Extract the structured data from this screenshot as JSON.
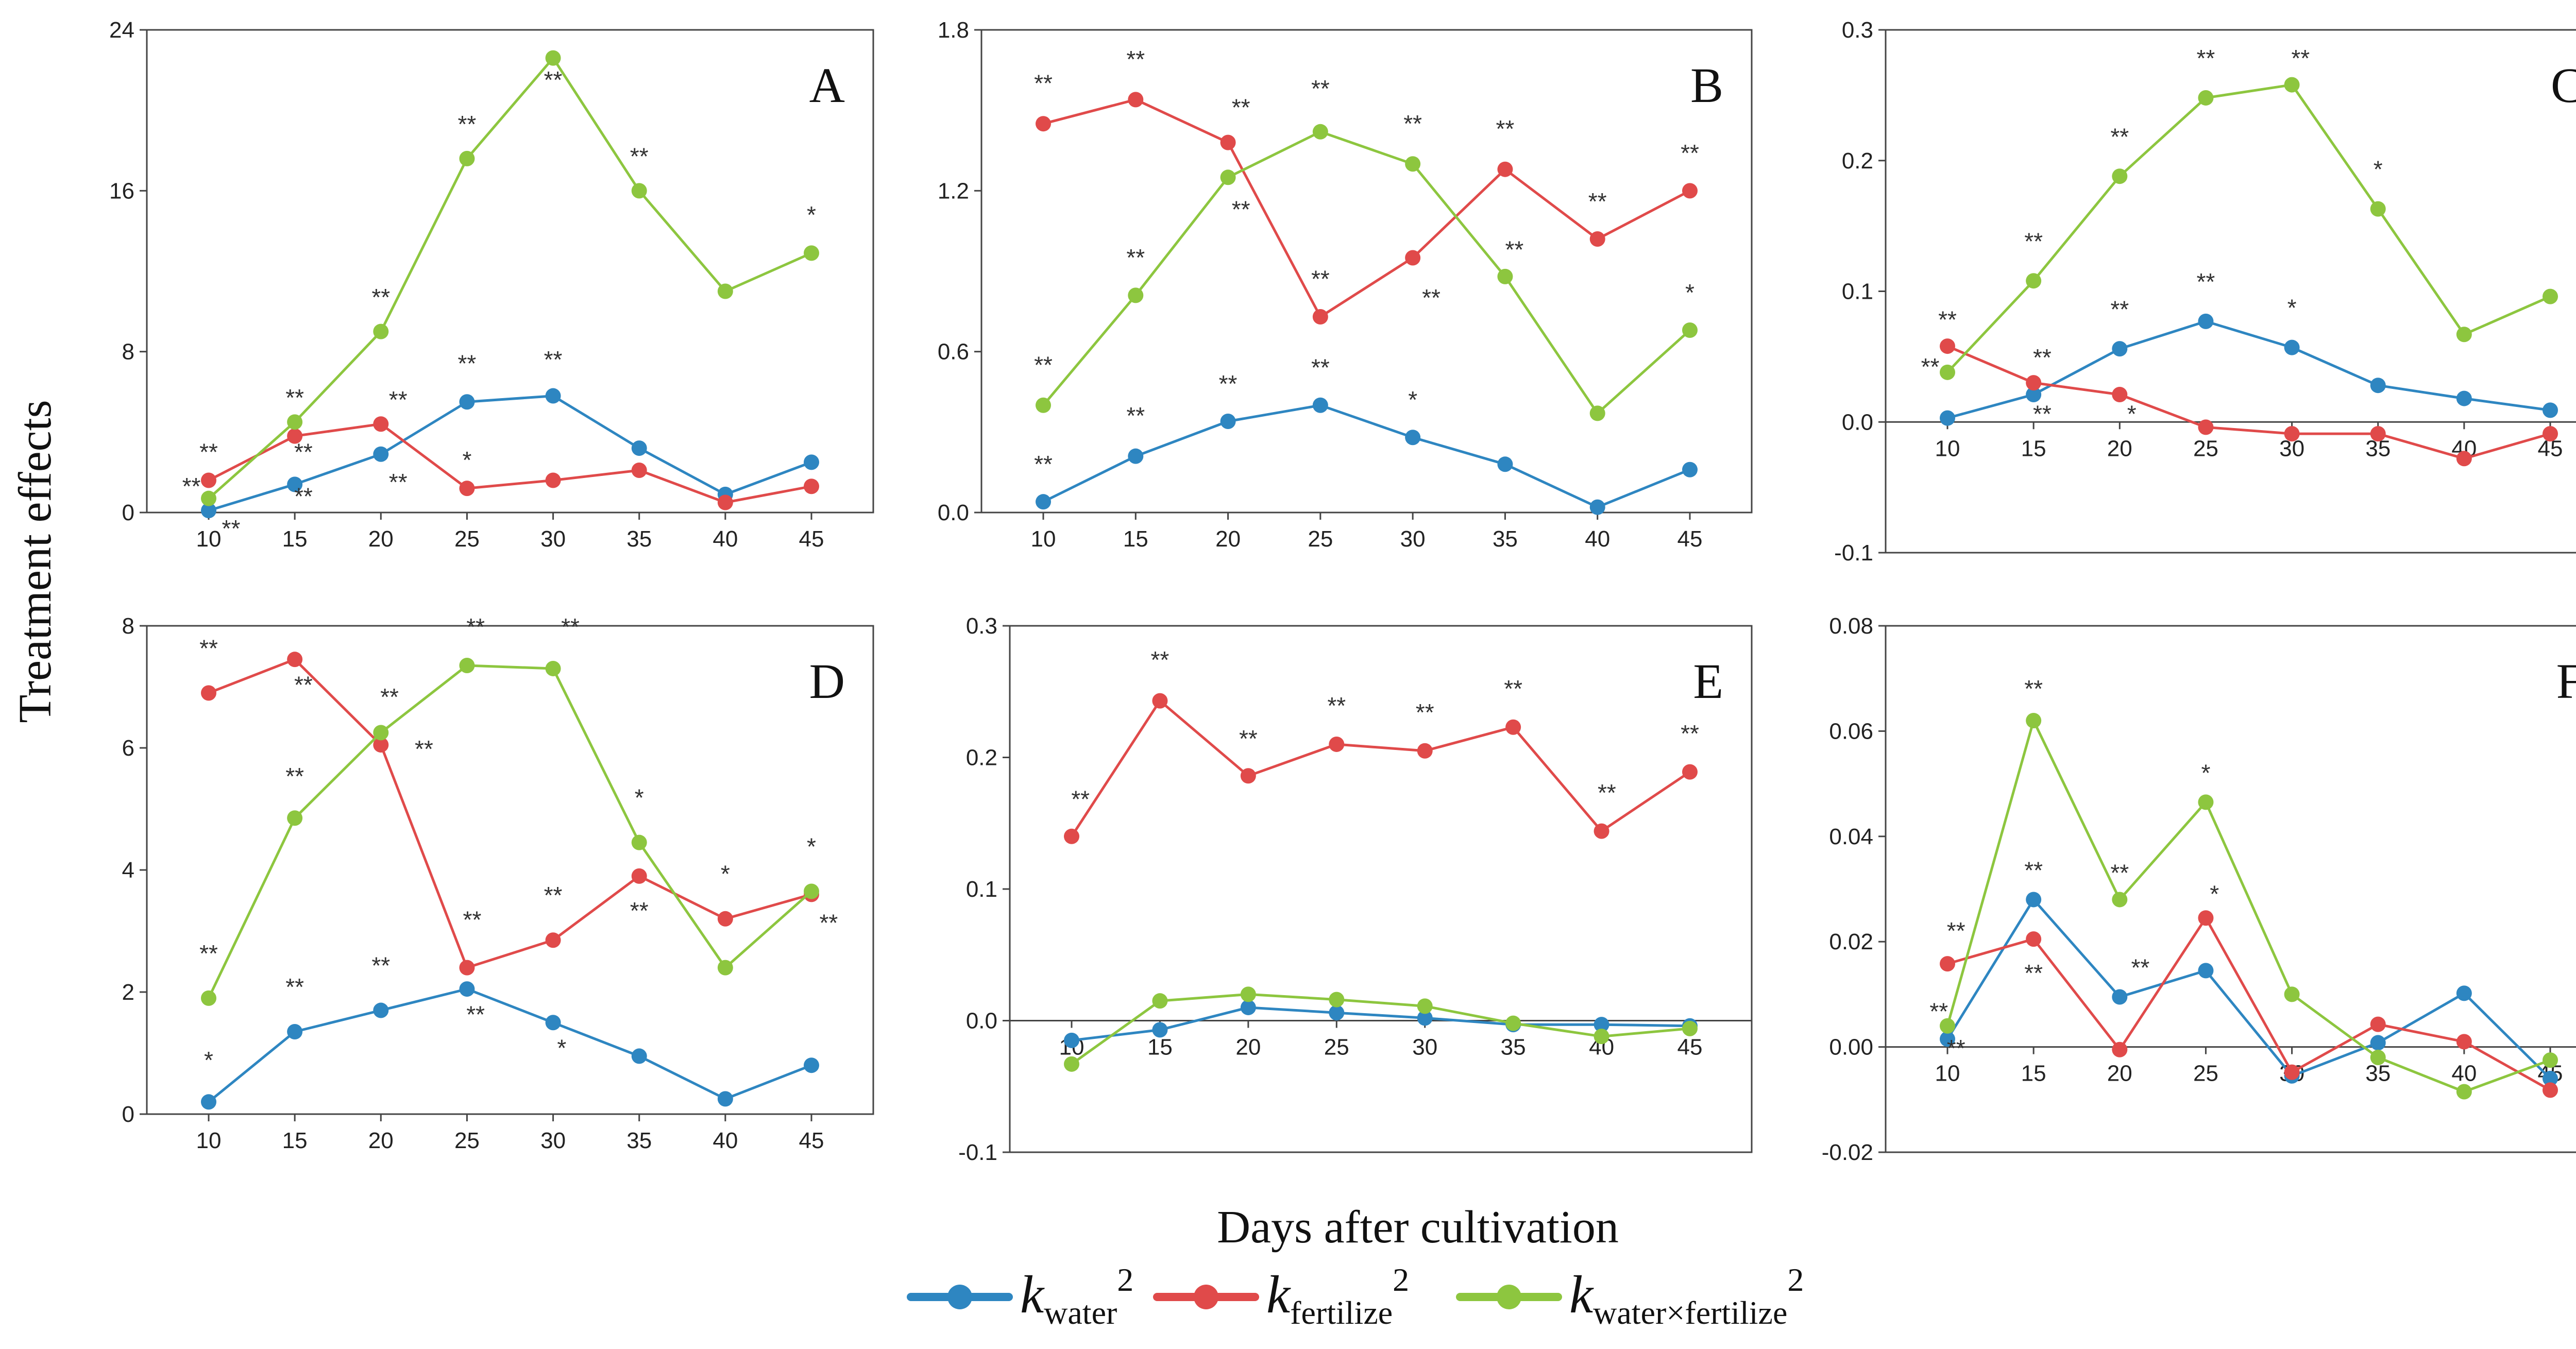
{
  "chart_data": {
    "type": "line",
    "ylabel": "Treatment effects",
    "xlabel": "Days after cultivation",
    "x": [
      10,
      15,
      20,
      25,
      30,
      35,
      40,
      45
    ],
    "series_names": [
      "k_water^2",
      "k_fertilize^2",
      "k_water×fertilize^2"
    ],
    "colors": {
      "k_water^2": "#2E86C1",
      "k_fertilize^2": "#E04A4A",
      "k_water×fertilize^2": "#8DC63F"
    },
    "legend": {
      "placement": "bottom-center",
      "items": [
        {
          "k": "k",
          "sub": "water",
          "sup": "2",
          "color": "#2E86C1"
        },
        {
          "k": "k",
          "sub": "fertilize",
          "sup": "2",
          "color": "#E04A4A"
        },
        {
          "k": "k",
          "sub": "water×fertilize",
          "sup": "2",
          "color": "#8DC63F"
        }
      ]
    },
    "panels": [
      {
        "label": "A",
        "ylim": [
          0,
          24
        ],
        "yticks": [
          "0",
          "8",
          "16",
          "24"
        ],
        "xaxis_at": 0,
        "series": [
          {
            "name": "k_water^2",
            "values": [
              0.1,
              1.4,
              2.9,
              5.5,
              5.8,
              3.2,
              0.9,
              2.5
            ]
          },
          {
            "name": "k_fertilize^2",
            "values": [
              1.6,
              3.8,
              4.4,
              1.2,
              1.6,
              2.1,
              0.5,
              1.3
            ]
          },
          {
            "name": "k_water×fertilize^2",
            "values": [
              0.7,
              4.5,
              9.0,
              17.6,
              22.6,
              16.0,
              11.0,
              12.9
            ]
          }
        ],
        "annotations": [
          {
            "x": 10,
            "y": 2.6,
            "text": "**"
          },
          {
            "x": 9.0,
            "y": 0.9,
            "text": "**"
          },
          {
            "x": 11.3,
            "y": -1.2,
            "text": "**"
          },
          {
            "x": 15,
            "y": 5.3,
            "text": "**"
          },
          {
            "x": 15.5,
            "y": 2.6,
            "text": "**"
          },
          {
            "x": 15.5,
            "y": 0.4,
            "text": "**"
          },
          {
            "x": 20,
            "y": 10.3,
            "text": "**"
          },
          {
            "x": 21,
            "y": 5.2,
            "text": "**"
          },
          {
            "x": 21,
            "y": 1.1,
            "text": "**"
          },
          {
            "x": 25,
            "y": 18.9,
            "text": "**"
          },
          {
            "x": 25,
            "y": 7.0,
            "text": "**"
          },
          {
            "x": 25,
            "y": 2.2,
            "text": "*"
          },
          {
            "x": 30,
            "y": 21.1,
            "text": "**"
          },
          {
            "x": 30,
            "y": 7.2,
            "text": "**"
          },
          {
            "x": 35,
            "y": 17.3,
            "text": "**"
          },
          {
            "x": 45,
            "y": 14.4,
            "text": "*"
          }
        ]
      },
      {
        "label": "B",
        "ylim": [
          0,
          1.8
        ],
        "yticks": [
          "0.0",
          "0.6",
          "1.2",
          "1.8"
        ],
        "xaxis_at": 0,
        "series": [
          {
            "name": "k_water^2",
            "values": [
              0.04,
              0.21,
              0.34,
              0.4,
              0.28,
              0.18,
              0.02,
              0.16
            ]
          },
          {
            "name": "k_fertilize^2",
            "values": [
              1.45,
              1.54,
              1.38,
              0.73,
              0.95,
              1.28,
              1.02,
              1.2
            ]
          },
          {
            "name": "k_water×fertilize^2",
            "values": [
              0.4,
              0.81,
              1.25,
              1.42,
              1.3,
              0.88,
              0.37,
              0.68
            ]
          }
        ],
        "annotations": [
          {
            "x": 10,
            "y": 1.57,
            "text": "**"
          },
          {
            "x": 10,
            "y": 0.52,
            "text": "**"
          },
          {
            "x": 10,
            "y": 0.15,
            "text": "**"
          },
          {
            "x": 15,
            "y": 1.66,
            "text": "**"
          },
          {
            "x": 15,
            "y": 0.92,
            "text": "**"
          },
          {
            "x": 15,
            "y": 0.33,
            "text": "**"
          },
          {
            "x": 20.7,
            "y": 1.48,
            "text": "**"
          },
          {
            "x": 20.7,
            "y": 1.1,
            "text": "**"
          },
          {
            "x": 20,
            "y": 0.45,
            "text": "**"
          },
          {
            "x": 25,
            "y": 1.55,
            "text": "**"
          },
          {
            "x": 25,
            "y": 0.84,
            "text": "**"
          },
          {
            "x": 25,
            "y": 0.51,
            "text": "**"
          },
          {
            "x": 30,
            "y": 1.42,
            "text": "**"
          },
          {
            "x": 31,
            "y": 0.77,
            "text": "**"
          },
          {
            "x": 30,
            "y": 0.39,
            "text": "*"
          },
          {
            "x": 35,
            "y": 1.4,
            "text": "**"
          },
          {
            "x": 35.5,
            "y": 0.95,
            "text": "**"
          },
          {
            "x": 40,
            "y": 1.13,
            "text": "**"
          },
          {
            "x": 45,
            "y": 1.31,
            "text": "**"
          },
          {
            "x": 45,
            "y": 0.79,
            "text": "*"
          }
        ]
      },
      {
        "label": "C",
        "ylim": [
          -0.1,
          0.3
        ],
        "yticks": [
          "-0.1",
          "0.0",
          "0.1",
          "0.2",
          "0.3"
        ],
        "xaxis_at": 0,
        "series": [
          {
            "name": "k_water^2",
            "values": [
              0.003,
              0.021,
              0.056,
              0.077,
              0.057,
              0.028,
              0.018,
              0.009
            ]
          },
          {
            "name": "k_fertilize^2",
            "values": [
              0.058,
              0.03,
              0.021,
              -0.004,
              -0.009,
              -0.009,
              -0.028,
              -0.009
            ]
          },
          {
            "name": "k_water×fertilize^2",
            "values": [
              0.038,
              0.108,
              0.188,
              0.248,
              0.258,
              0.163,
              0.067,
              0.096
            ]
          }
        ],
        "annotations": [
          {
            "x": 10,
            "y": 0.072,
            "text": "**"
          },
          {
            "x": 9,
            "y": 0.036,
            "text": "**"
          },
          {
            "x": 15,
            "y": 0.132,
            "text": "**"
          },
          {
            "x": 15.5,
            "y": 0.043,
            "text": "**"
          },
          {
            "x": 15.5,
            "y": 0.0,
            "text": "**"
          },
          {
            "x": 20,
            "y": 0.212,
            "text": "**"
          },
          {
            "x": 20,
            "y": 0.08,
            "text": "**"
          },
          {
            "x": 20.7,
            "y": 0.0,
            "text": "*"
          },
          {
            "x": 25,
            "y": 0.272,
            "text": "**"
          },
          {
            "x": 25,
            "y": 0.101,
            "text": "**"
          },
          {
            "x": 30.5,
            "y": 0.272,
            "text": "**"
          },
          {
            "x": 30,
            "y": 0.081,
            "text": "*"
          },
          {
            "x": 35,
            "y": 0.187,
            "text": "*"
          }
        ]
      },
      {
        "label": "D",
        "ylim": [
          0,
          8
        ],
        "yticks": [
          "0",
          "2",
          "4",
          "6",
          "8"
        ],
        "xaxis_at": 0,
        "series": [
          {
            "name": "k_water^2",
            "values": [
              0.2,
              1.35,
              1.7,
              2.05,
              1.5,
              0.95,
              0.25,
              0.8
            ]
          },
          {
            "name": "k_fertilize^2",
            "values": [
              6.9,
              7.45,
              6.05,
              2.4,
              2.85,
              3.9,
              3.2,
              3.6
            ]
          },
          {
            "name": "k_water×fertilize^2",
            "values": [
              1.9,
              4.85,
              6.25,
              7.35,
              7.3,
              4.45,
              2.4,
              3.65
            ]
          }
        ],
        "annotations": [
          {
            "x": 10,
            "y": 7.5,
            "text": "**"
          },
          {
            "x": 10,
            "y": 2.5,
            "text": "**"
          },
          {
            "x": 10,
            "y": 0.75,
            "text": "*"
          },
          {
            "x": 15.5,
            "y": 6.9,
            "text": "**"
          },
          {
            "x": 15,
            "y": 5.4,
            "text": "**"
          },
          {
            "x": 15,
            "y": 1.95,
            "text": "**"
          },
          {
            "x": 20.5,
            "y": 6.7,
            "text": "**"
          },
          {
            "x": 22.5,
            "y": 5.85,
            "text": "**"
          },
          {
            "x": 20,
            "y": 2.3,
            "text": "**"
          },
          {
            "x": 25.5,
            "y": 7.85,
            "text": "**"
          },
          {
            "x": 25.3,
            "y": 3.05,
            "text": "**"
          },
          {
            "x": 25.5,
            "y": 1.5,
            "text": "**"
          },
          {
            "x": 31,
            "y": 7.85,
            "text": "**"
          },
          {
            "x": 30,
            "y": 3.45,
            "text": "**"
          },
          {
            "x": 30.5,
            "y": 0.95,
            "text": "*"
          },
          {
            "x": 35,
            "y": 5.05,
            "text": "*"
          },
          {
            "x": 35,
            "y": 3.2,
            "text": "**"
          },
          {
            "x": 40,
            "y": 3.8,
            "text": "*"
          },
          {
            "x": 45,
            "y": 4.25,
            "text": "*"
          },
          {
            "x": 46,
            "y": 3.0,
            "text": "**"
          }
        ]
      },
      {
        "label": "E",
        "ylim": [
          -0.1,
          0.3
        ],
        "yticks": [
          "-0.1",
          "0.0",
          "0.1",
          "0.2",
          "0.3"
        ],
        "xaxis_at": 0,
        "series": [
          {
            "name": "k_water^2",
            "values": [
              -0.015,
              -0.007,
              0.01,
              0.006,
              0.002,
              -0.003,
              -0.003,
              -0.004
            ]
          },
          {
            "name": "k_fertilize^2",
            "values": [
              0.14,
              0.243,
              0.186,
              0.21,
              0.205,
              0.223,
              0.144,
              0.189
            ]
          },
          {
            "name": "k_water×fertilize^2",
            "values": [
              -0.033,
              0.015,
              0.02,
              0.016,
              0.011,
              -0.002,
              -0.012,
              -0.006
            ]
          }
        ],
        "annotations": [
          {
            "x": 10.5,
            "y": 0.162,
            "text": "**"
          },
          {
            "x": 15,
            "y": 0.268,
            "text": "**"
          },
          {
            "x": 20,
            "y": 0.208,
            "text": "**"
          },
          {
            "x": 25,
            "y": 0.233,
            "text": "**"
          },
          {
            "x": 30,
            "y": 0.228,
            "text": "**"
          },
          {
            "x": 35,
            "y": 0.246,
            "text": "**"
          },
          {
            "x": 40.3,
            "y": 0.167,
            "text": "**"
          },
          {
            "x": 45,
            "y": 0.212,
            "text": "**"
          }
        ]
      },
      {
        "label": "F",
        "ylim": [
          -0.02,
          0.08
        ],
        "yticks": [
          "-0.02",
          "0.00",
          "0.02",
          "0.04",
          "0.06",
          "0.08"
        ],
        "xaxis_at": 0,
        "series": [
          {
            "name": "k_water^2",
            "values": [
              0.0015,
              0.028,
              0.0095,
              0.0145,
              -0.0055,
              0.0008,
              0.0102,
              -0.006
            ]
          },
          {
            "name": "k_fertilize^2",
            "values": [
              0.0158,
              0.0205,
              -0.0005,
              0.0245,
              -0.0048,
              0.0043,
              0.001,
              -0.0082
            ]
          },
          {
            "name": "k_water×fertilize^2",
            "values": [
              0.004,
              0.062,
              0.028,
              0.0465,
              0.01,
              -0.002,
              -0.0085,
              -0.0025
            ]
          }
        ],
        "annotations": [
          {
            "x": 10.5,
            "y": 0.0205,
            "text": "**"
          },
          {
            "x": 9.5,
            "y": 0.0052,
            "text": "**"
          },
          {
            "x": 10.5,
            "y": -0.0018,
            "text": "**"
          },
          {
            "x": 15,
            "y": 0.0665,
            "text": "**"
          },
          {
            "x": 15,
            "y": 0.032,
            "text": "**"
          },
          {
            "x": 15,
            "y": 0.0125,
            "text": "**"
          },
          {
            "x": 20,
            "y": 0.0315,
            "text": "**"
          },
          {
            "x": 21.2,
            "y": 0.0135,
            "text": "**"
          },
          {
            "x": 25,
            "y": 0.0505,
            "text": "*"
          },
          {
            "x": 25.5,
            "y": 0.0275,
            "text": "*"
          }
        ]
      }
    ]
  }
}
